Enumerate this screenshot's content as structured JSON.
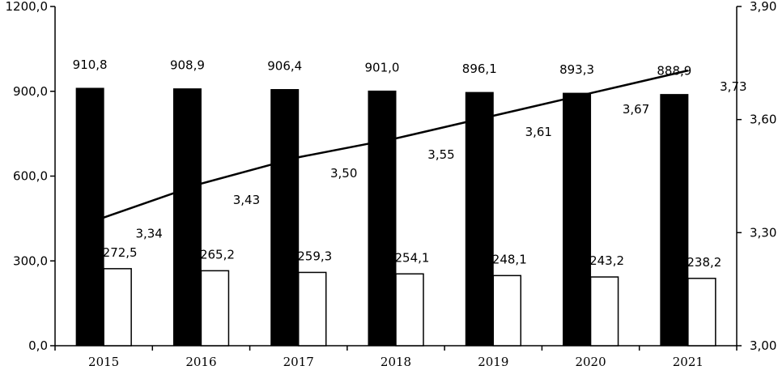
{
  "chart_data": {
    "type": "bar",
    "categories": [
      "2015",
      "2016",
      "2017",
      "2018",
      "2019",
      "2020",
      "2021"
    ],
    "series": [
      {
        "kind": "bar",
        "axis": "left",
        "color": "#000000",
        "values": [
          910.8,
          908.9,
          906.4,
          901.0,
          896.1,
          893.3,
          888.9
        ]
      },
      {
        "kind": "bar",
        "axis": "left",
        "color": "#ffffff",
        "values": [
          272.5,
          265.2,
          259.3,
          254.1,
          248.1,
          243.2,
          238.2
        ]
      },
      {
        "kind": "line",
        "axis": "right",
        "color": "#000000",
        "values": [
          3.34,
          3.43,
          3.5,
          3.55,
          3.61,
          3.67,
          3.73
        ]
      }
    ],
    "y_left": {
      "ylim": [
        0,
        1200
      ],
      "ticks": [
        "0,0",
        "300,0",
        "600,0",
        "900,0",
        "1200,0"
      ]
    },
    "y_right": {
      "ylim": [
        3.0,
        3.9
      ],
      "ticks": [
        "3,00",
        "3,30",
        "3,60",
        "3,90"
      ]
    },
    "labels": {
      "bar1": [
        "910,8",
        "908,9",
        "906,4",
        "901,0",
        "896,1",
        "893,3",
        "888,9"
      ],
      "bar2": [
        "272,5",
        "265,2",
        "259,3",
        "254,1",
        "248,1",
        "243,2",
        "238,2"
      ],
      "line": [
        "3,34",
        "3,43",
        "3,50",
        "3,55",
        "3,61",
        "3,67",
        "3,73"
      ]
    },
    "grid": false,
    "legend": "none"
  }
}
